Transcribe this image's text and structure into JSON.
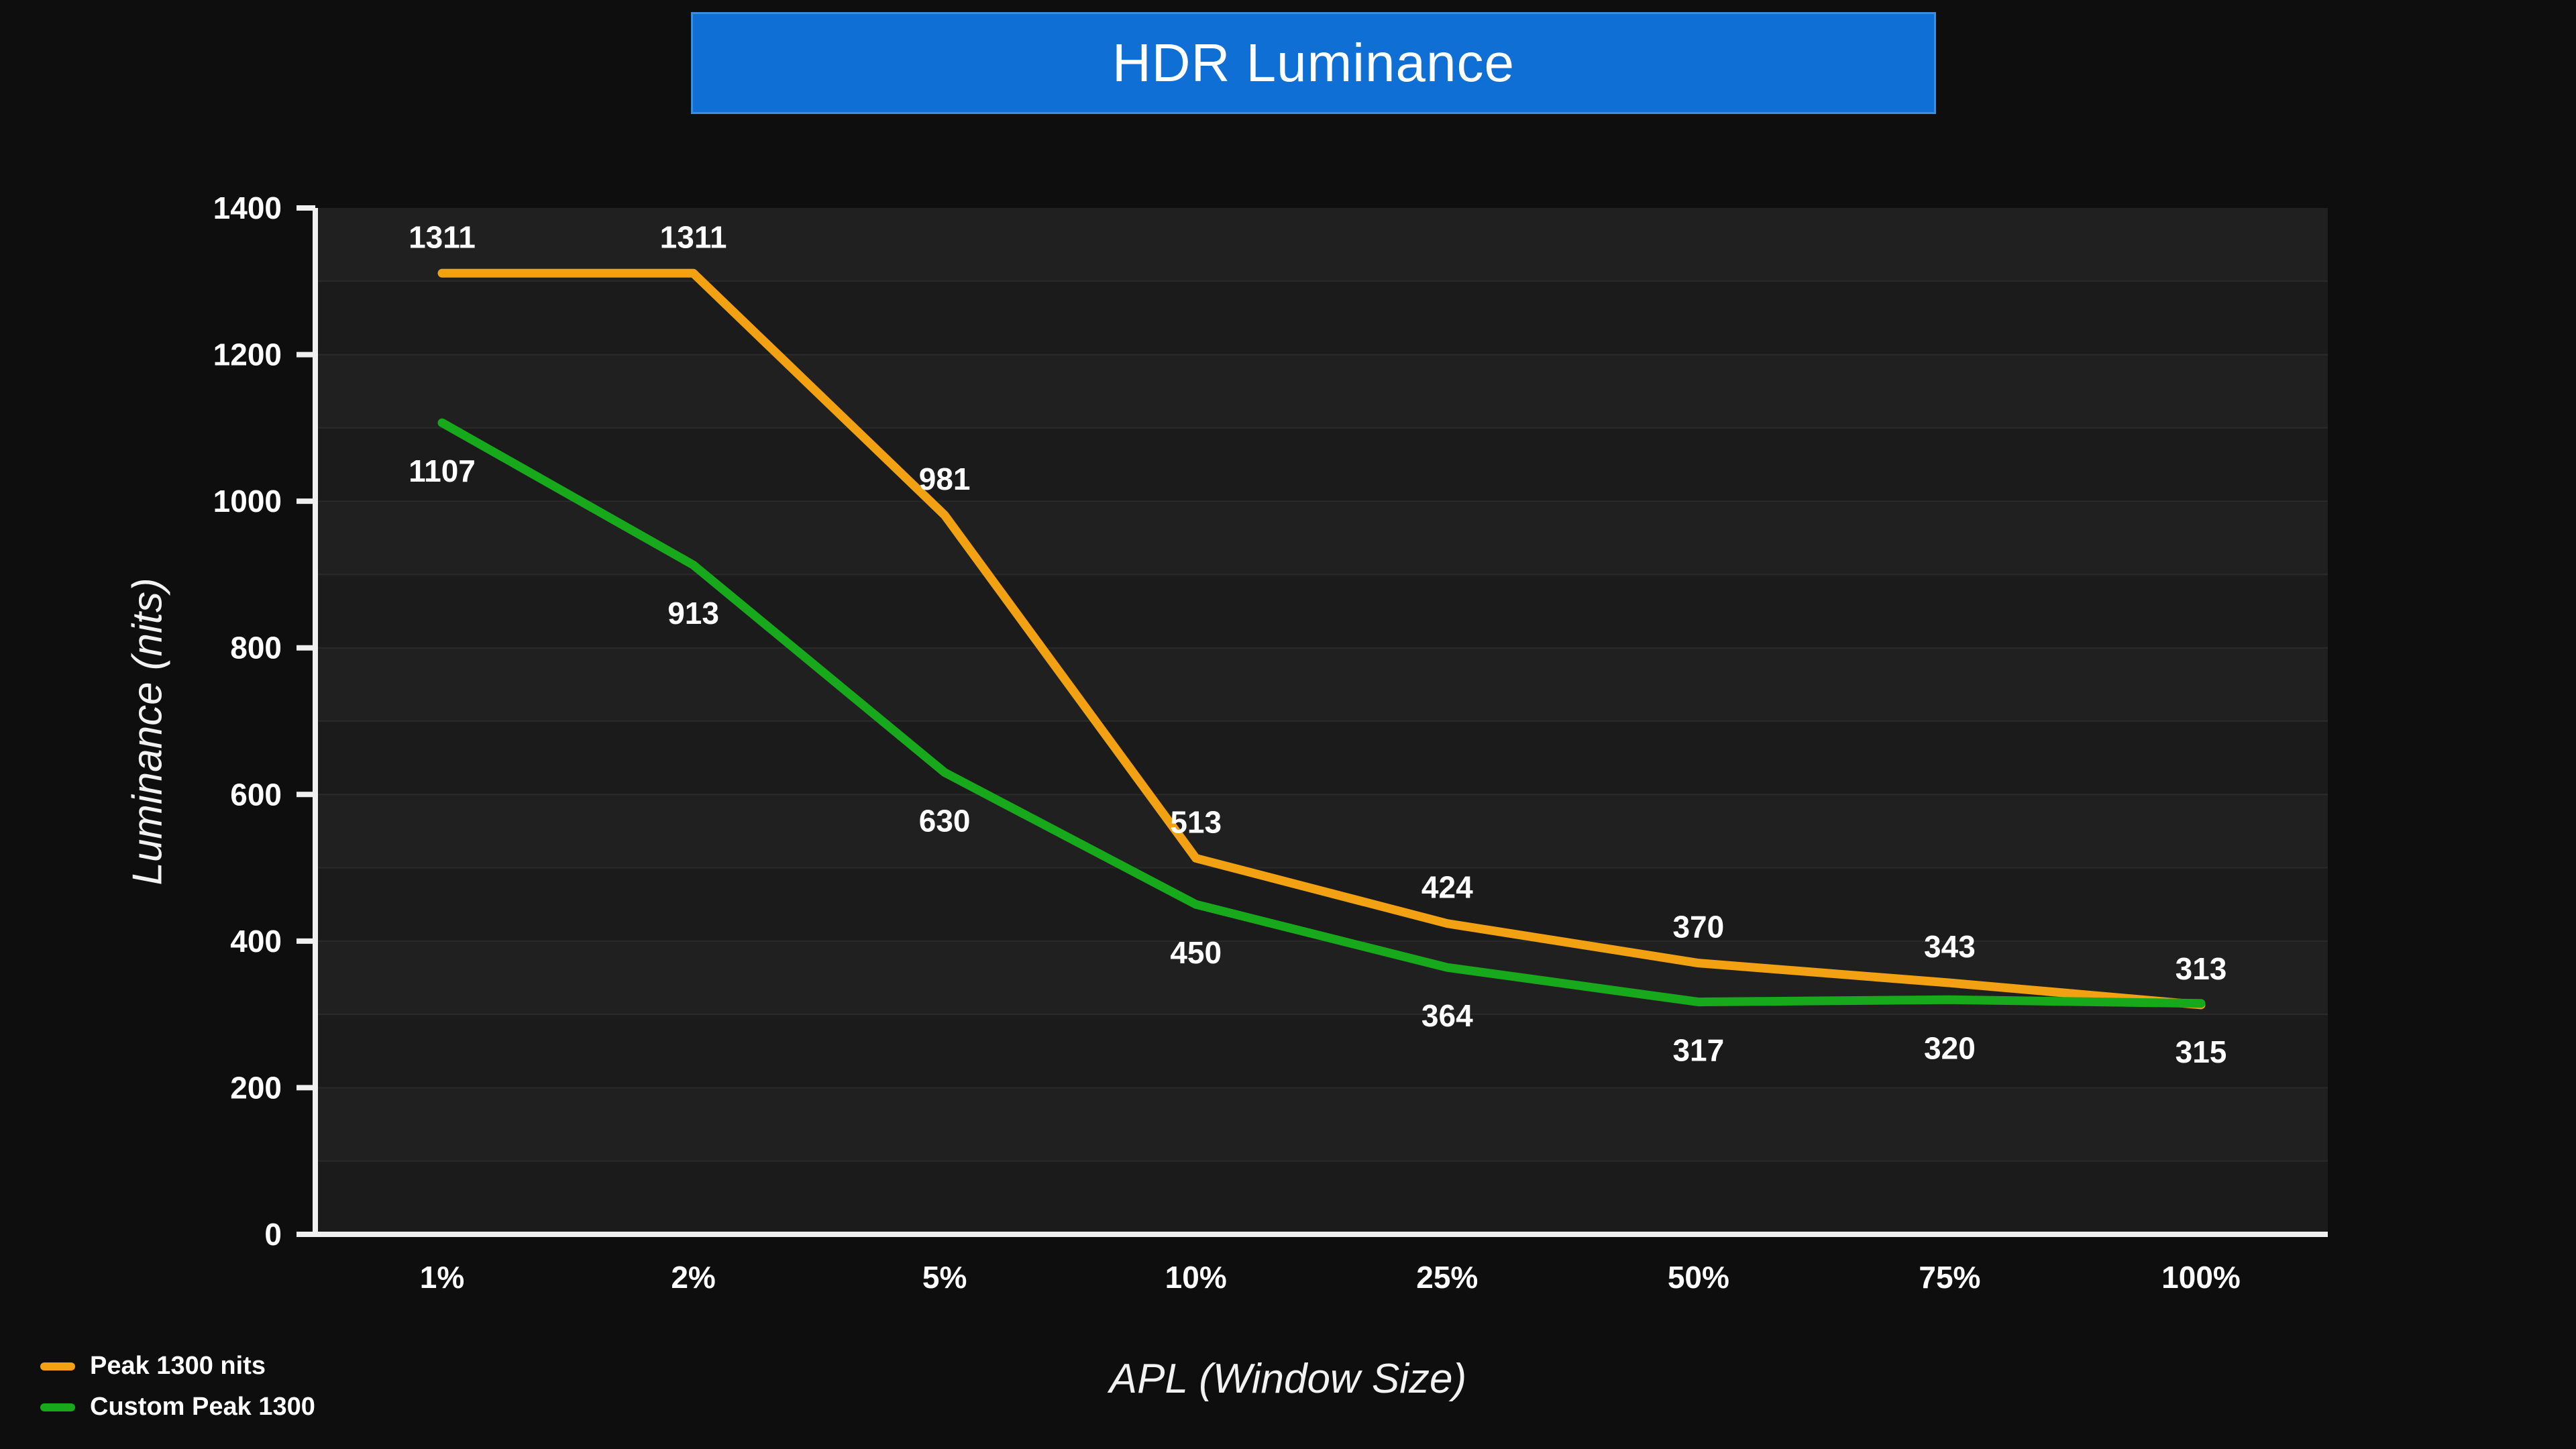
{
  "title": "HDR Luminance",
  "chart_data": {
    "type": "line",
    "title": "HDR Luminance",
    "categories": [
      "1%",
      "2%",
      "5%",
      "10%",
      "25%",
      "50%",
      "75%",
      "100%"
    ],
    "series": [
      {
        "name": "Peak 1300 nits",
        "color": "#F2A113",
        "values": [
          1311,
          1311,
          981,
          513,
          424,
          370,
          343,
          313
        ]
      },
      {
        "name": "Custom Peak 1300",
        "color": "#17A81C",
        "values": [
          1107,
          913,
          630,
          450,
          364,
          317,
          320,
          315
        ]
      }
    ],
    "xlabel": "APL (Window Size)",
    "ylabel": "Luminance (nits)",
    "ylim": [
      0,
      1400
    ],
    "yticks": [
      0,
      200,
      400,
      600,
      800,
      1000,
      1200,
      1400
    ],
    "ygrid_step": 100,
    "grid": true,
    "legend_position": "bottom-left",
    "data_labels": true
  },
  "colors": {
    "background": "#0e0e0e",
    "plot_background": "#1b1b1b",
    "axis": "#f0f0f0",
    "tick_text": "#ffffff",
    "title_bar": "#0f6fd4",
    "title_text": "#ffffff"
  }
}
